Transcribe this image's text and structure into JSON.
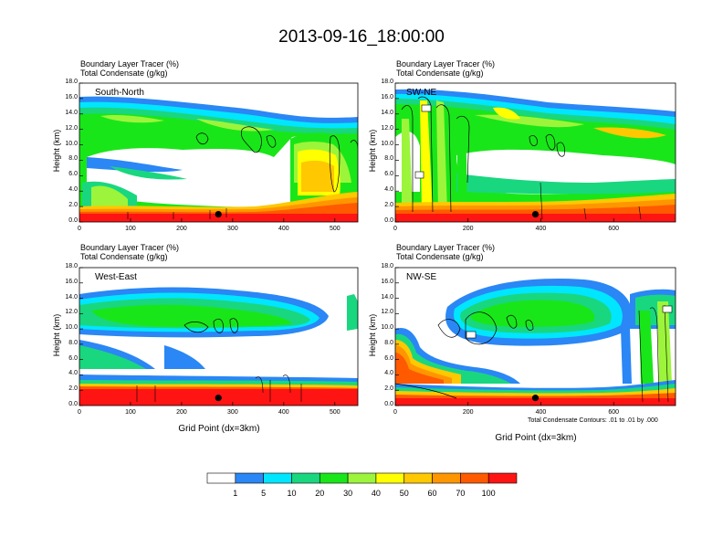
{
  "title": "2013-09-16_18:00:00",
  "field_label_1": "Boundary Layer Tracer   (%)",
  "field_label_2": "Total Condensate   (g/kg)",
  "xaxis_label": "Grid Point (dx=3km)",
  "yaxis_label": "Height (km)",
  "contour_note": "Total Condensate Contours: .01 to .01 by .000",
  "colorbar": {
    "labels": [
      "1",
      "5",
      "10",
      "20",
      "30",
      "40",
      "50",
      "60",
      "70",
      "100"
    ],
    "colors": [
      "#ffffff",
      "#2a87f5",
      "#00e6ff",
      "#19d77f",
      "#19e619",
      "#9cf53a",
      "#ffff00",
      "#ffc800",
      "#ff9600",
      "#ff5a00",
      "#ff1414"
    ]
  },
  "chart_data": [
    {
      "type": "contour",
      "name": "South-North",
      "xlim": [
        0,
        545
      ],
      "ylim": [
        0,
        18
      ],
      "xticks": [
        0,
        100,
        200,
        300,
        400,
        500
      ],
      "yticks": [
        "0.0",
        "2.0",
        "4.0",
        "6.0",
        "8.0",
        "10.0",
        "12.0",
        "14.0",
        "16.0",
        "18.0"
      ],
      "marker": {
        "x": 272,
        "y": 1.0
      }
    },
    {
      "type": "contour",
      "name": "SW-NE",
      "xlim": [
        0,
        770
      ],
      "ylim": [
        0,
        18
      ],
      "xticks": [
        0,
        200,
        400,
        600
      ],
      "yticks": [
        "0.0",
        "2.0",
        "4.0",
        "6.0",
        "8.0",
        "10.0",
        "12.0",
        "14.0",
        "16.0",
        "18.0"
      ],
      "marker": {
        "x": 385,
        "y": 1.0
      }
    },
    {
      "type": "contour",
      "name": "West-East",
      "xlim": [
        0,
        545
      ],
      "ylim": [
        0,
        18
      ],
      "xticks": [
        0,
        100,
        200,
        300,
        400,
        500
      ],
      "yticks": [
        "0.0",
        "2.0",
        "4.0",
        "6.0",
        "8.0",
        "10.0",
        "12.0",
        "14.0",
        "16.0",
        "18.0"
      ],
      "marker": {
        "x": 272,
        "y": 1.0
      }
    },
    {
      "type": "contour",
      "name": "NW-SE",
      "xlim": [
        0,
        770
      ],
      "ylim": [
        0,
        18
      ],
      "xticks": [
        0,
        200,
        400,
        600
      ],
      "yticks": [
        "0.0",
        "2.0",
        "4.0",
        "6.0",
        "8.0",
        "10.0",
        "12.0",
        "14.0",
        "16.0",
        "18.0"
      ],
      "marker": {
        "x": 385,
        "y": 1.0
      }
    }
  ]
}
